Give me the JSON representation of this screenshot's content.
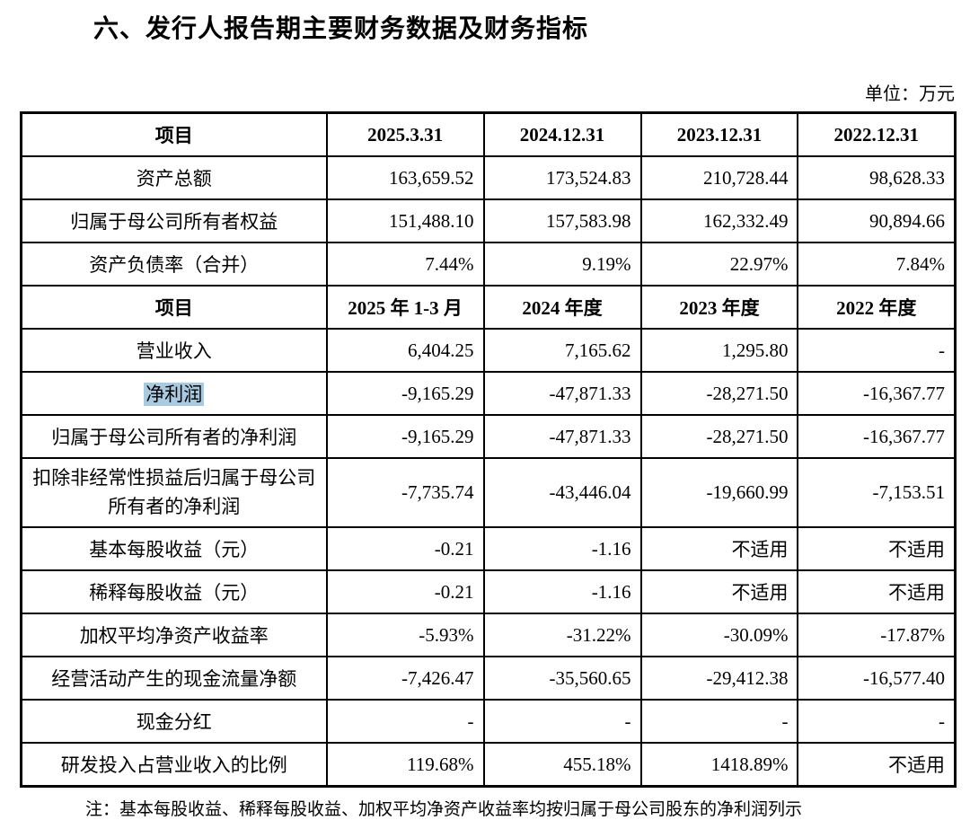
{
  "page": {
    "title": "六、发行人报告期主要财务数据及财务指标",
    "unit_label": "单位：万元",
    "note": "注：基本每股收益、稀释每股收益、加权平均净资产收益率均按归属于母公司股东的净利润列示"
  },
  "colors": {
    "selection_highlight": "#a9cbe2",
    "border": "#000000",
    "background": "#ffffff"
  },
  "table": {
    "column_layout": [
      "32.7%",
      "16.825%",
      "16.825%",
      "16.825%",
      "16.825%"
    ],
    "rows": [
      {
        "type": "header",
        "label": "项目",
        "values": [
          "2025.3.31",
          "2024.12.31",
          "2023.12.31",
          "2022.12.31"
        ]
      },
      {
        "type": "data",
        "label": "资产总额",
        "values": [
          "163,659.52",
          "173,524.83",
          "210,728.44",
          "98,628.33"
        ]
      },
      {
        "type": "data",
        "label": "归属于母公司所有者权益",
        "values": [
          "151,488.10",
          "157,583.98",
          "162,332.49",
          "90,894.66"
        ]
      },
      {
        "type": "data",
        "label": "资产负债率（合并）",
        "values": [
          "7.44%",
          "9.19%",
          "22.97%",
          "7.84%"
        ]
      },
      {
        "type": "header",
        "label": "项目",
        "values": [
          "2025 年 1-3 月",
          "2024 年度",
          "2023 年度",
          "2022 年度"
        ]
      },
      {
        "type": "data",
        "label": "营业收入",
        "values": [
          "6,404.25",
          "7,165.62",
          "1,295.80",
          "-"
        ]
      },
      {
        "type": "data",
        "label": "净利润",
        "highlighted": true,
        "values": [
          "-9,165.29",
          "-47,871.33",
          "-28,271.50",
          "-16,367.77"
        ]
      },
      {
        "type": "data",
        "label": "归属于母公司所有者的净利润",
        "values": [
          "-9,165.29",
          "-47,871.33",
          "-28,271.50",
          "-16,367.77"
        ]
      },
      {
        "type": "data",
        "label": "扣除非经常性损益后归属于母公司所有者的净利润",
        "multiline": true,
        "values": [
          "-7,735.74",
          "-43,446.04",
          "-19,660.99",
          "-7,153.51"
        ]
      },
      {
        "type": "data",
        "label": "基本每股收益（元）",
        "values": [
          "-0.21",
          "-1.16",
          "不适用",
          "不适用"
        ]
      },
      {
        "type": "data",
        "label": "稀释每股收益（元）",
        "values": [
          "-0.21",
          "-1.16",
          "不适用",
          "不适用"
        ]
      },
      {
        "type": "data",
        "label": "加权平均净资产收益率",
        "values": [
          "-5.93%",
          "-31.22%",
          "-30.09%",
          "-17.87%"
        ]
      },
      {
        "type": "data",
        "label": "经营活动产生的现金流量净额",
        "values": [
          "-7,426.47",
          "-35,560.65",
          "-29,412.38",
          "-16,577.40"
        ]
      },
      {
        "type": "data",
        "label": "现金分红",
        "values": [
          "-",
          "-",
          "-",
          "-"
        ]
      },
      {
        "type": "data",
        "label": "研发投入占营业收入的比例",
        "values": [
          "119.68%",
          "455.18%",
          "1418.89%",
          "不适用"
        ]
      }
    ]
  }
}
